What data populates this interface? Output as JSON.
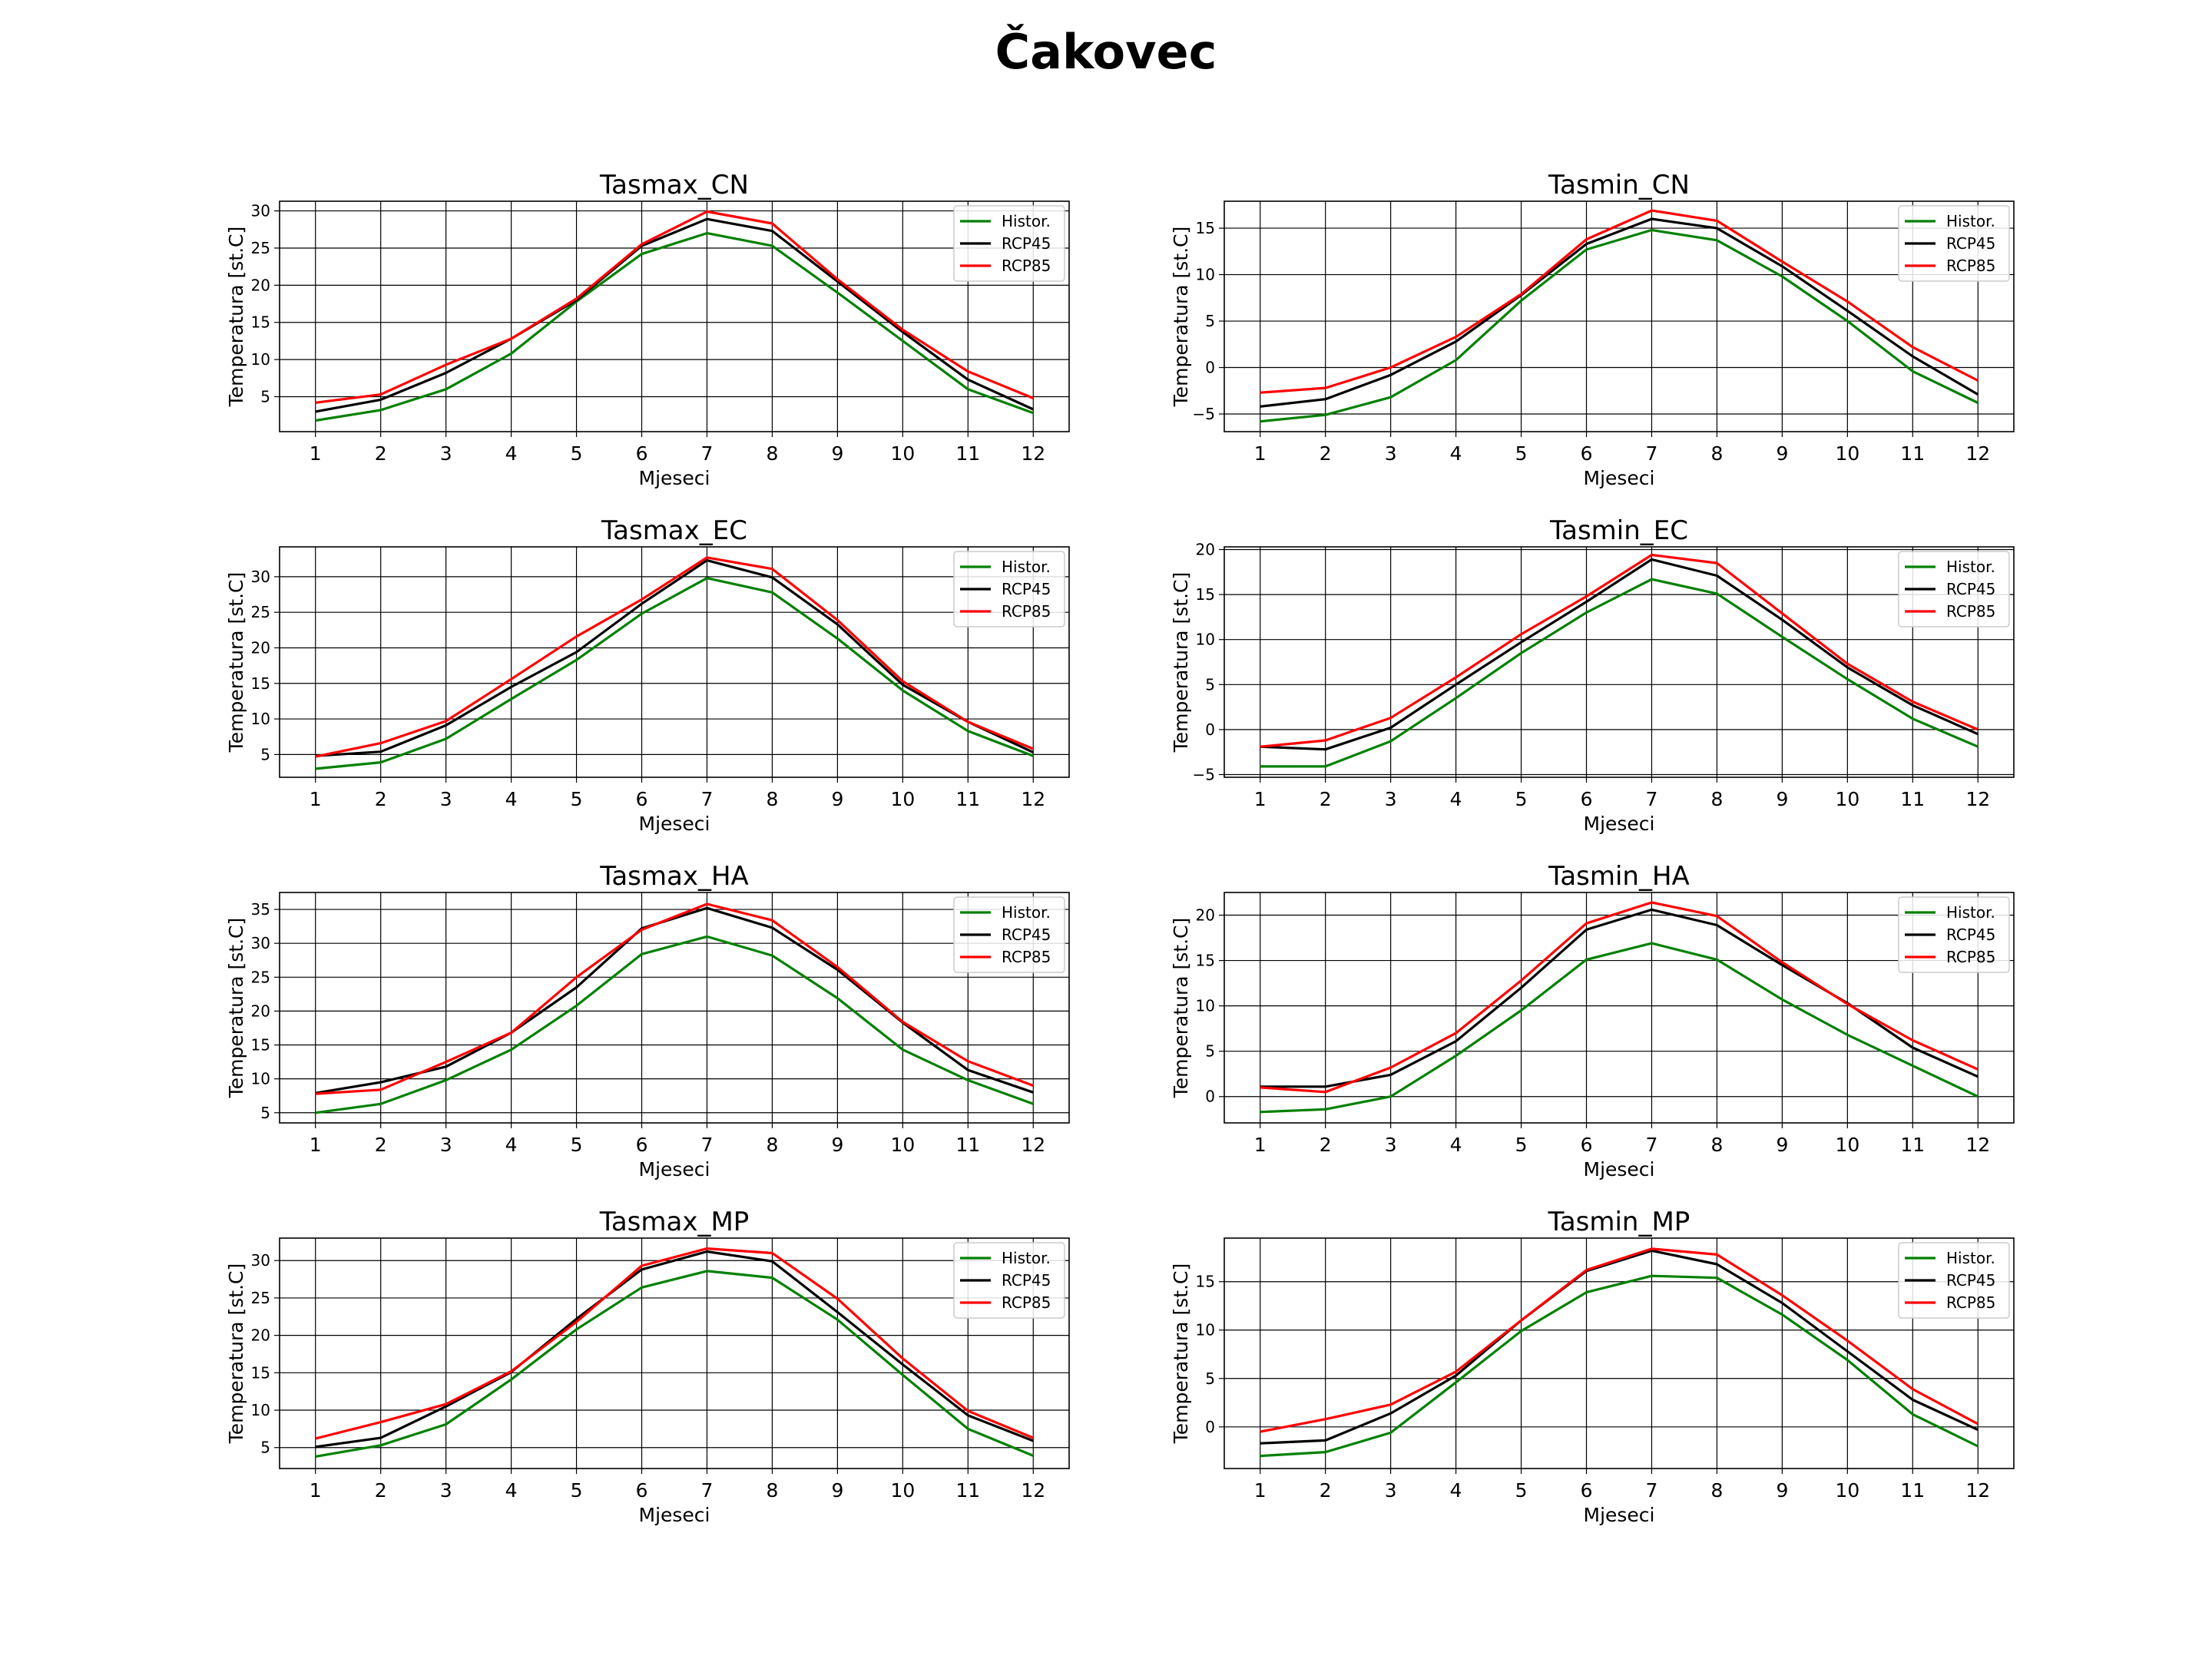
{
  "suptitle": "Čakovec",
  "colors": {
    "Histor.": "#008000",
    "RCP45": "#000000",
    "RCP85": "#ff0000",
    "grid": "#000000"
  },
  "chart_data": [
    {
      "type": "line",
      "title": "Tasmax_CN",
      "xlabel": "Mjeseci",
      "ylabel": "Temperatura [st.C]",
      "x": [
        1,
        2,
        3,
        4,
        5,
        6,
        7,
        8,
        9,
        10,
        11,
        12
      ],
      "xlim": [
        0.45,
        12.55
      ],
      "ylim": [
        0.3,
        31.3
      ],
      "yticks": [
        5,
        10,
        15,
        20,
        25,
        30
      ],
      "legend": "top-right",
      "grid": true,
      "series": [
        {
          "name": "Histor.",
          "values": [
            1.8,
            3.2,
            6.0,
            10.8,
            17.8,
            24.2,
            27.0,
            25.3,
            19.0,
            12.5,
            6.0,
            2.8
          ]
        },
        {
          "name": "RCP45",
          "values": [
            3.0,
            4.6,
            8.2,
            12.8,
            18.0,
            25.3,
            28.9,
            27.3,
            20.5,
            13.7,
            7.3,
            3.3
          ]
        },
        {
          "name": "RCP85",
          "values": [
            4.2,
            5.3,
            9.3,
            12.8,
            18.2,
            25.5,
            29.9,
            28.3,
            20.8,
            14.0,
            8.4,
            4.8
          ]
        }
      ]
    },
    {
      "type": "line",
      "title": "Tasmin_CN",
      "xlabel": "Mjeseci",
      "ylabel": "Temperatura [st.C]",
      "x": [
        1,
        2,
        3,
        4,
        5,
        6,
        7,
        8,
        9,
        10,
        11,
        12
      ],
      "xlim": [
        0.45,
        12.55
      ],
      "ylim": [
        -6.9,
        17.9
      ],
      "yticks": [
        -5,
        0,
        5,
        10,
        15
      ],
      "legend": "top-right",
      "grid": true,
      "series": [
        {
          "name": "Histor.",
          "values": [
            -5.8,
            -5.1,
            -3.2,
            0.8,
            7.2,
            12.7,
            14.8,
            13.7,
            9.8,
            5.0,
            -0.4,
            -3.8
          ]
        },
        {
          "name": "RCP45",
          "values": [
            -4.2,
            -3.4,
            -0.8,
            2.8,
            7.8,
            13.3,
            16.0,
            15.0,
            10.9,
            6.1,
            1.2,
            -2.9
          ]
        },
        {
          "name": "RCP85",
          "values": [
            -2.7,
            -2.2,
            0.0,
            3.3,
            7.9,
            13.8,
            16.9,
            15.8,
            11.4,
            7.1,
            2.2,
            -1.4
          ]
        }
      ]
    },
    {
      "type": "line",
      "title": "Tasmax_EC",
      "xlabel": "Mjeseci",
      "ylabel": "Temperatura [st.C]",
      "x": [
        1,
        2,
        3,
        4,
        5,
        6,
        7,
        8,
        9,
        10,
        11,
        12
      ],
      "xlim": [
        0.45,
        12.55
      ],
      "ylim": [
        1.8,
        34.2
      ],
      "yticks": [
        5,
        10,
        15,
        20,
        25,
        30
      ],
      "legend": "top-right",
      "grid": true,
      "series": [
        {
          "name": "Histor.",
          "values": [
            3.0,
            3.9,
            7.2,
            12.8,
            18.3,
            24.8,
            29.8,
            27.8,
            21.3,
            14.0,
            8.3,
            4.8
          ]
        },
        {
          "name": "RCP45",
          "values": [
            4.8,
            5.4,
            9.1,
            14.5,
            19.4,
            26.2,
            32.3,
            29.9,
            23.3,
            14.8,
            9.6,
            5.3
          ]
        },
        {
          "name": "RCP85",
          "values": [
            4.7,
            6.6,
            9.7,
            15.6,
            21.6,
            26.8,
            32.7,
            31.1,
            23.9,
            15.3,
            9.6,
            5.8
          ]
        }
      ]
    },
    {
      "type": "line",
      "title": "Tasmin_EC",
      "xlabel": "Mjeseci",
      "ylabel": "Temperatura [st.C]",
      "x": [
        1,
        2,
        3,
        4,
        5,
        6,
        7,
        8,
        9,
        10,
        11,
        12
      ],
      "xlim": [
        0.45,
        12.55
      ],
      "ylim": [
        -5.3,
        20.3
      ],
      "yticks": [
        -5,
        0,
        5,
        10,
        15,
        20
      ],
      "legend": "top-right",
      "grid": true,
      "series": [
        {
          "name": "Histor.",
          "values": [
            -4.1,
            -4.1,
            -1.3,
            3.5,
            8.5,
            13.0,
            16.7,
            15.1,
            10.3,
            5.6,
            1.2,
            -1.9
          ]
        },
        {
          "name": "RCP45",
          "values": [
            -1.9,
            -2.2,
            0.2,
            5.0,
            9.7,
            14.2,
            18.9,
            17.1,
            12.2,
            6.9,
            2.7,
            -0.5
          ]
        },
        {
          "name": "RCP85",
          "values": [
            -1.9,
            -1.2,
            1.3,
            5.8,
            10.6,
            14.8,
            19.4,
            18.5,
            12.9,
            7.3,
            3.1,
            0.0
          ]
        }
      ]
    },
    {
      "type": "line",
      "title": "Tasmax_HA",
      "xlabel": "Mjeseci",
      "ylabel": "Temperatura [st.C]",
      "x": [
        1,
        2,
        3,
        4,
        5,
        6,
        7,
        8,
        9,
        10,
        11,
        12
      ],
      "xlim": [
        0.45,
        12.55
      ],
      "ylim": [
        3.5,
        37.5
      ],
      "yticks": [
        5,
        10,
        15,
        20,
        25,
        30,
        35
      ],
      "legend": "top-right",
      "grid": true,
      "series": [
        {
          "name": "Histor.",
          "values": [
            5.0,
            6.3,
            9.8,
            14.3,
            20.8,
            28.4,
            31.0,
            28.2,
            21.9,
            14.3,
            9.8,
            6.3
          ]
        },
        {
          "name": "RCP45",
          "values": [
            7.9,
            9.5,
            11.8,
            16.8,
            23.5,
            32.2,
            35.2,
            32.3,
            26.1,
            18.3,
            11.3,
            8.0
          ]
        },
        {
          "name": "RCP85",
          "values": [
            7.8,
            8.4,
            12.5,
            16.8,
            25.0,
            32.0,
            35.8,
            33.4,
            26.5,
            18.4,
            12.6,
            9.0
          ]
        }
      ]
    },
    {
      "type": "line",
      "title": "Tasmin_HA",
      "xlabel": "Mjeseci",
      "ylabel": "Temperatura [st.C]",
      "x": [
        1,
        2,
        3,
        4,
        5,
        6,
        7,
        8,
        9,
        10,
        11,
        12
      ],
      "xlim": [
        0.45,
        12.55
      ],
      "ylim": [
        -2.9,
        22.5
      ],
      "yticks": [
        0,
        5,
        10,
        15,
        20
      ],
      "legend": "top-right",
      "grid": true,
      "series": [
        {
          "name": "Histor.",
          "values": [
            -1.7,
            -1.4,
            0.0,
            4.5,
            9.5,
            15.1,
            16.9,
            15.1,
            10.7,
            6.8,
            3.4,
            0.0
          ]
        },
        {
          "name": "RCP45",
          "values": [
            1.1,
            1.1,
            2.4,
            6.1,
            12.0,
            18.4,
            20.6,
            18.9,
            14.5,
            10.3,
            5.4,
            2.2
          ]
        },
        {
          "name": "RCP85",
          "values": [
            1.0,
            0.5,
            3.2,
            7.0,
            12.8,
            19.1,
            21.4,
            19.9,
            14.8,
            10.2,
            6.2,
            3.0
          ]
        }
      ]
    },
    {
      "type": "line",
      "title": "Tasmax_MP",
      "xlabel": "Mjeseci",
      "ylabel": "Temperatura [st.C]",
      "x": [
        1,
        2,
        3,
        4,
        5,
        6,
        7,
        8,
        9,
        10,
        11,
        12
      ],
      "xlim": [
        0.45,
        12.55
      ],
      "ylim": [
        2.2,
        33.0
      ],
      "yticks": [
        5,
        10,
        15,
        20,
        25,
        30
      ],
      "legend": "top-right",
      "grid": true,
      "series": [
        {
          "name": "Histor.",
          "values": [
            3.8,
            5.3,
            8.1,
            14.1,
            20.8,
            26.4,
            28.6,
            27.7,
            22.1,
            14.7,
            7.5,
            3.9
          ]
        },
        {
          "name": "RCP45",
          "values": [
            5.1,
            6.3,
            10.5,
            15.1,
            22.2,
            28.8,
            31.2,
            29.9,
            23.1,
            16.1,
            9.3,
            5.9
          ]
        },
        {
          "name": "RCP85",
          "values": [
            6.2,
            8.4,
            10.8,
            15.2,
            21.8,
            29.3,
            31.6,
            31.0,
            24.9,
            16.9,
            9.9,
            6.3
          ]
        }
      ]
    },
    {
      "type": "line",
      "title": "Tasmin_MP",
      "xlabel": "Mjeseci",
      "ylabel": "Temperatura [st.C]",
      "x": [
        1,
        2,
        3,
        4,
        5,
        6,
        7,
        8,
        9,
        10,
        11,
        12
      ],
      "xlim": [
        0.45,
        12.55
      ],
      "ylim": [
        -4.3,
        19.5
      ],
      "yticks": [
        0,
        5,
        10,
        15
      ],
      "legend": "top-right",
      "grid": true,
      "series": [
        {
          "name": "Histor.",
          "values": [
            -3.0,
            -2.6,
            -0.6,
            4.6,
            9.9,
            13.9,
            15.6,
            15.4,
            11.6,
            6.9,
            1.3,
            -2.0
          ]
        },
        {
          "name": "RCP45",
          "values": [
            -1.7,
            -1.4,
            1.4,
            5.3,
            11.0,
            16.1,
            18.2,
            16.8,
            12.8,
            7.8,
            2.8,
            -0.3
          ]
        },
        {
          "name": "RCP85",
          "values": [
            -0.5,
            0.8,
            2.3,
            5.7,
            11.0,
            16.2,
            18.4,
            17.8,
            13.6,
            8.9,
            3.9,
            0.3
          ]
        }
      ]
    }
  ]
}
